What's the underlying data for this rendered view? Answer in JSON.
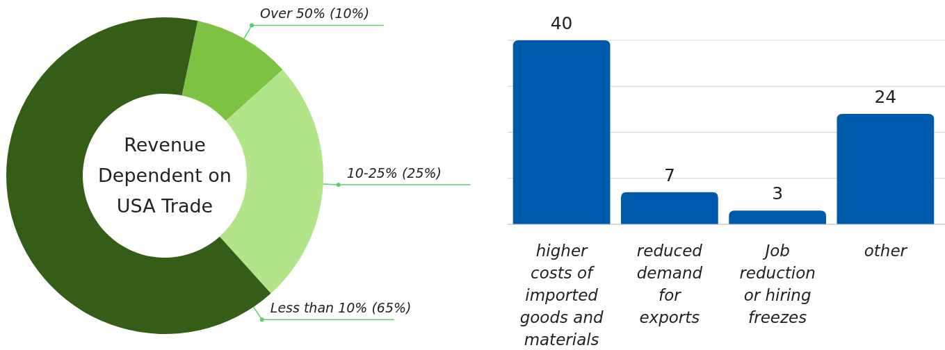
{
  "chart_data": [
    {
      "type": "donut",
      "title": "Revenue Dependent on USA Trade",
      "categories": [
        "Over 50% (10%)",
        "10-25% (25%)",
        "Less than 10% (65%)"
      ],
      "values": [
        10,
        25,
        65
      ],
      "colors": [
        "#7dc243",
        "#b2e58a",
        "#345d18"
      ]
    },
    {
      "type": "bar",
      "categories": [
        "higher costs of imported goods and materials",
        "reduced demand for exports",
        "Job reduction or hiring freezes",
        "other"
      ],
      "values": [
        40,
        7,
        3,
        24
      ],
      "color": "#005aab",
      "ylim": [
        0,
        40
      ],
      "yticks": [
        {
          "value": 0,
          "label": null
        },
        {
          "value": 10,
          "label": null
        },
        {
          "value": 20,
          "label": null
        },
        {
          "value": 30,
          "label": null
        },
        {
          "value": 40,
          "label": null
        }
      ],
      "grid": "y",
      "tick_labels": "x",
      "data_labels": true
    }
  ]
}
